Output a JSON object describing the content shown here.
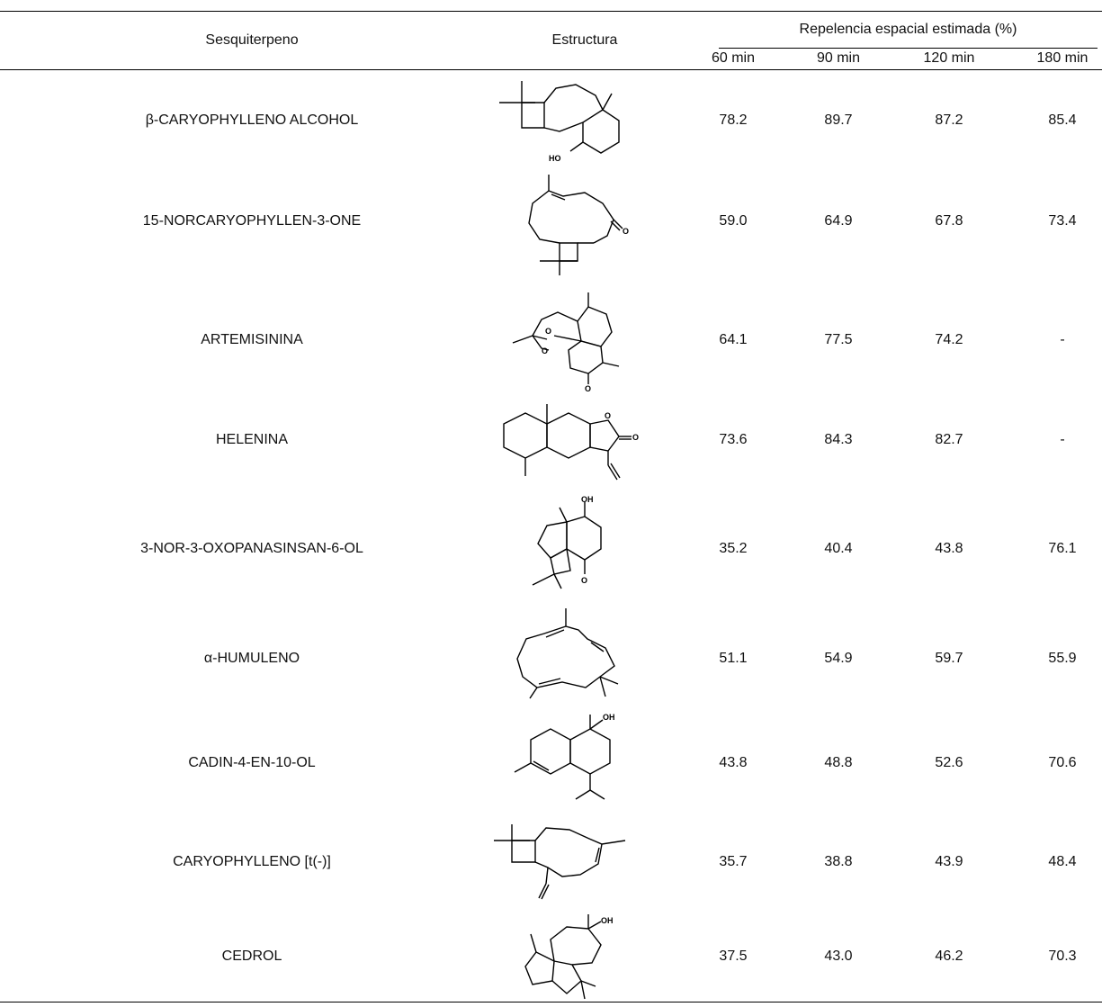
{
  "table": {
    "header": {
      "sesquiterpene": "Sesquiterpeno",
      "structure": "Estructura",
      "group": "Repelencia espacial estimada (%)",
      "times": [
        "60 min",
        "90 min",
        "120 min",
        "180 min"
      ]
    },
    "rows": [
      {
        "name": "β-CARYOPHYLLENO ALCOHOL",
        "v60": "78.2",
        "v90": "89.7",
        "v120": "87.2",
        "v180": "85.4",
        "structure_icon": "caryophyllene-alcohol-structure"
      },
      {
        "name": "15-NORCARYOPHYLLEN-3-ONE",
        "v60": "59.0",
        "v90": "64.9",
        "v120": "67.8",
        "v180": "73.4",
        "structure_icon": "norcaryophyllenone-structure"
      },
      {
        "name": "ARTEMISININA",
        "v60": "64.1",
        "v90": "77.5",
        "v120": "74.2",
        "v180": "-",
        "structure_icon": "artemisinin-structure"
      },
      {
        "name": "HELENINA",
        "v60": "73.6",
        "v90": "84.3",
        "v120": "82.7",
        "v180": "-",
        "structure_icon": "helenin-structure"
      },
      {
        "name": "3-NOR-3-OXOPANASINSAN-6-OL",
        "v60": "35.2",
        "v90": "40.4",
        "v120": "43.8",
        "v180": "76.1",
        "structure_icon": "oxopanasinsanol-structure"
      },
      {
        "name": "α-HUMULENO",
        "v60": "51.1",
        "v90": "54.9",
        "v120": "59.7",
        "v180": "55.9",
        "structure_icon": "humulene-structure"
      },
      {
        "name": "CADIN-4-EN-10-OL",
        "v60": "43.8",
        "v90": "48.8",
        "v120": "52.6",
        "v180": "70.6",
        "structure_icon": "cadinenol-structure"
      },
      {
        "name": "CARYOPHYLLENO [t(-)]",
        "v60": "35.7",
        "v90": "38.8",
        "v120": "43.9",
        "v180": "48.4",
        "structure_icon": "caryophyllene-structure"
      },
      {
        "name": "CEDROL",
        "v60": "37.5",
        "v90": "43.0",
        "v120": "46.2",
        "v180": "70.3",
        "structure_icon": "cedrol-structure"
      }
    ],
    "atom_labels": {
      "ho": "HO",
      "o": "O",
      "oh": "OH"
    }
  }
}
